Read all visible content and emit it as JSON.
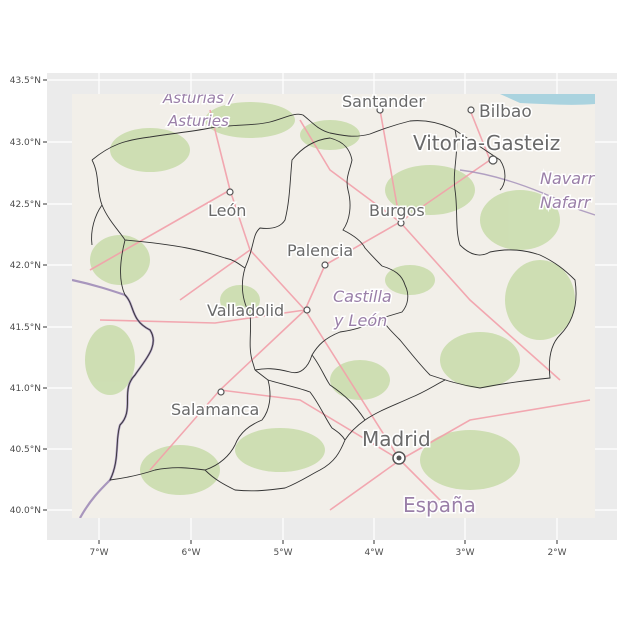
{
  "map": {
    "axes": {
      "lat_ticks": [
        "43.5°N",
        "43.0°N",
        "42.5°N",
        "42.0°N",
        "41.5°N",
        "41.0°N",
        "40.5°N",
        "40.0°N"
      ],
      "lon_ticks": [
        "7°W",
        "6°W",
        "5°W",
        "4°W",
        "3°W",
        "2°W"
      ],
      "panel_color": "#ebebeb",
      "grid_color": "#ffffff"
    },
    "tiles": {
      "land_color": "#f2efe9",
      "vegetation_color": "#c8dcaa",
      "road_color": "#f3a0aa",
      "border_color": "#a08cb8",
      "sea_color": "#aad3df"
    },
    "labels": {
      "asturias_1": "Asturias /",
      "asturias_2": "Asturies",
      "santander": "Santander",
      "bilbao": "Bilbao",
      "vitoria": "Vitoria-Gasteiz",
      "navarra_1": "Navarr",
      "navarra_2": "Nafarr",
      "leon": "León",
      "burgos": "Burgos",
      "palencia": "Palencia",
      "valladolid": "Valladolid",
      "castilla_1": "Castilla",
      "castilla_2": "y León",
      "salamanca": "Salamanca",
      "madrid": "Madrid",
      "espana": "España"
    },
    "province_outline_color": "#333333"
  }
}
